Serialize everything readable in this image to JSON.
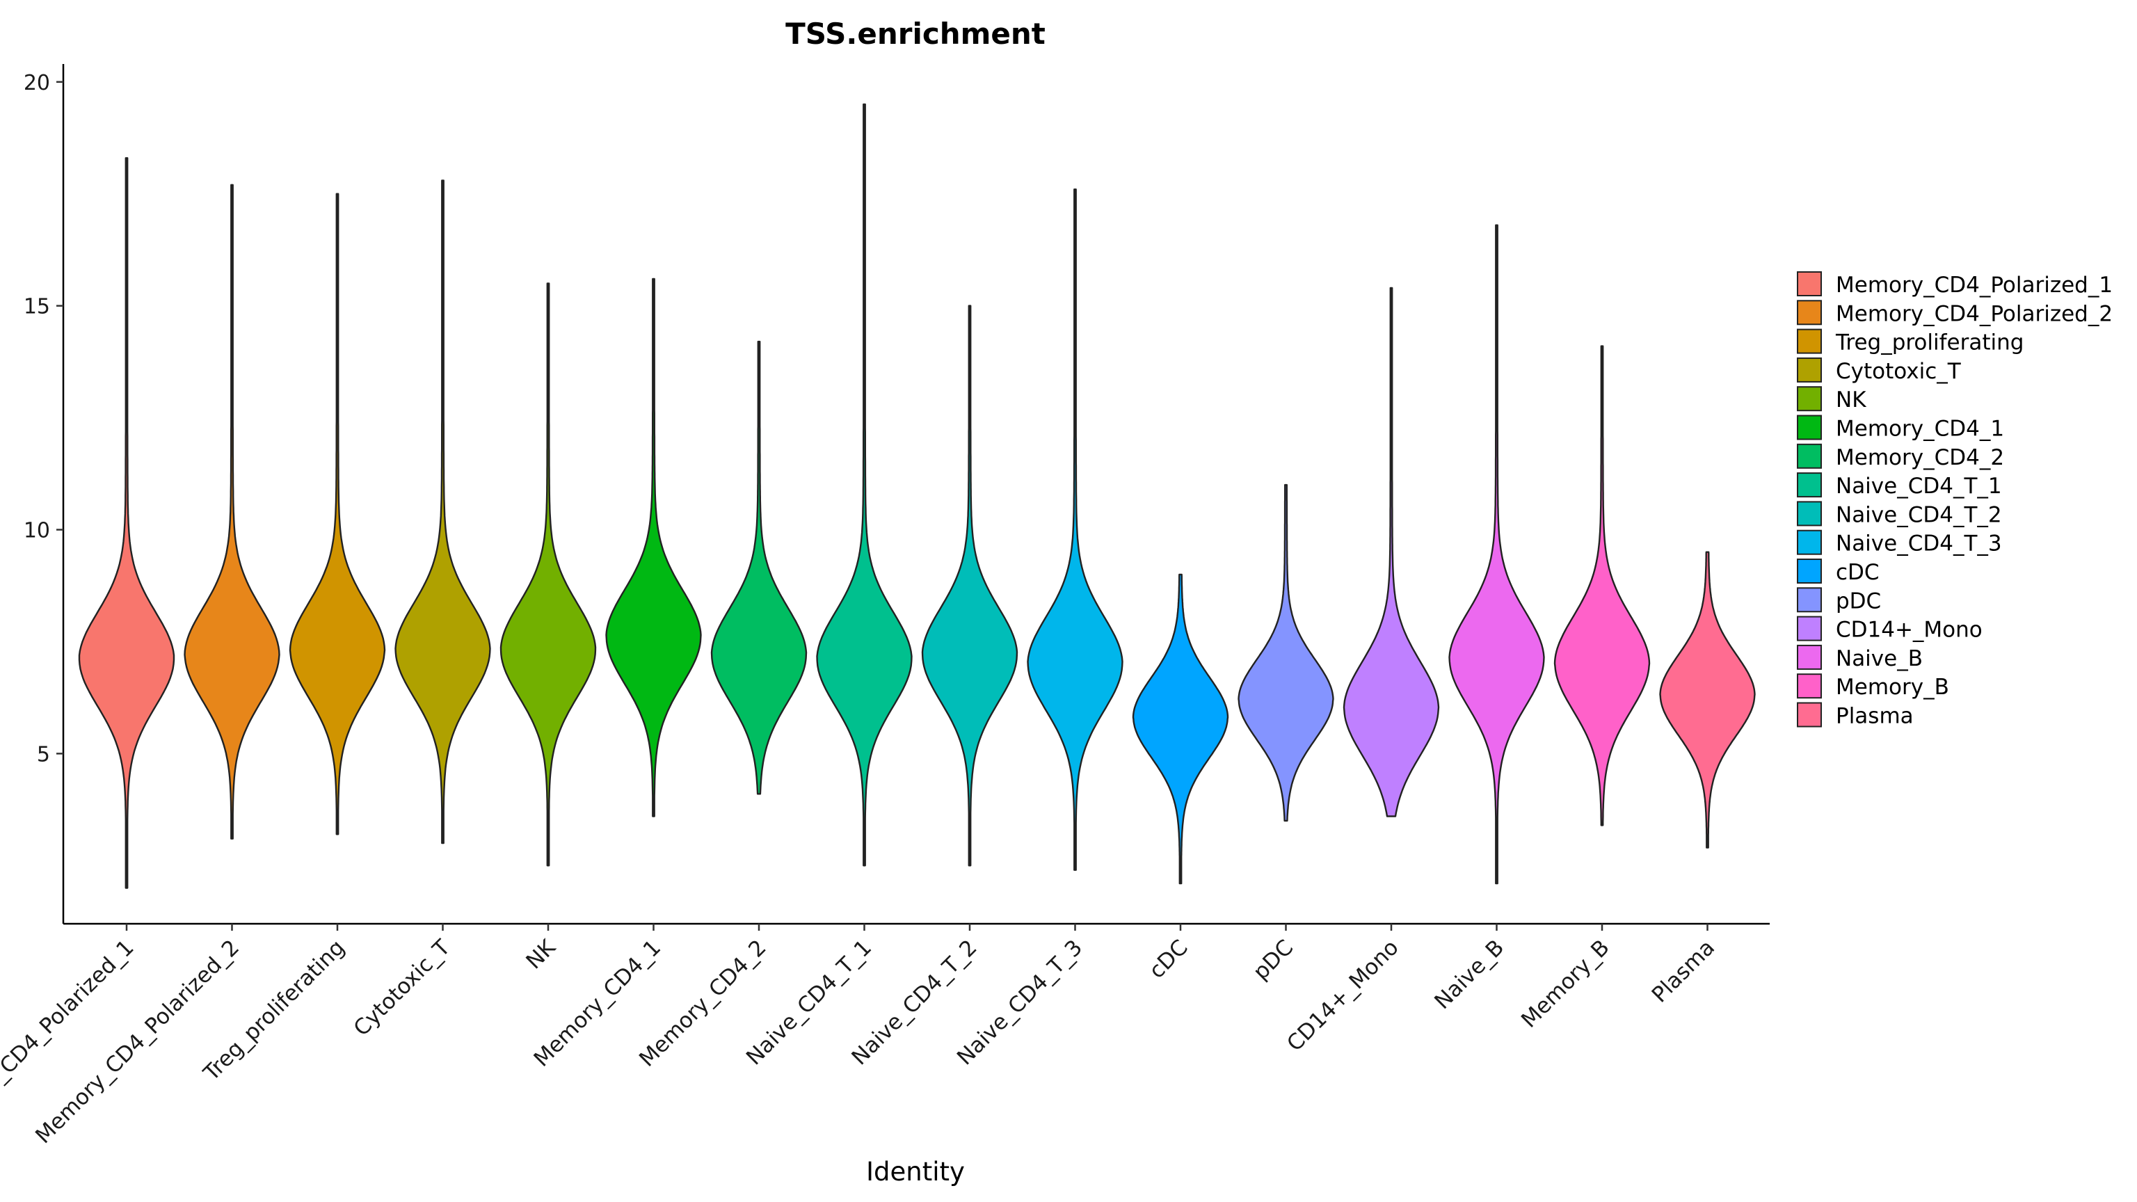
{
  "chart_data": {
    "type": "violin",
    "title": "TSS.enrichment",
    "xlabel": "Identity",
    "ylabel": "",
    "ylim": [
      1.2,
      20.4
    ],
    "yticks": [
      5,
      10,
      15,
      20
    ],
    "grid": false,
    "legend_position": "right",
    "categories": [
      "Memory_CD4_Polarized_1",
      "Memory_CD4_Polarized_2",
      "Treg_proliferating",
      "Cytotoxic_T",
      "NK",
      "Memory_CD4_1",
      "Memory_CD4_2",
      "Naive_CD4_T_1",
      "Naive_CD4_T_2",
      "Naive_CD4_T_3",
      "cDC",
      "pDC",
      "CD14+_Mono",
      "Naive_B",
      "Memory_B",
      "Plasma"
    ],
    "colors": [
      "#F8766D",
      "#E7861A",
      "#D09400",
      "#AFA100",
      "#72B000",
      "#00B813",
      "#00BD61",
      "#00C08E",
      "#00BDB8",
      "#00B6EB",
      "#00A5FF",
      "#8494FF",
      "#BF80FF",
      "#EC69EF",
      "#FF61C9",
      "#FF6C91"
    ],
    "series": [
      {
        "name": "Memory_CD4_Polarized_1",
        "min": 2.0,
        "max": 18.3,
        "median": 7.1
      },
      {
        "name": "Memory_CD4_Polarized_2",
        "min": 3.1,
        "max": 17.7,
        "median": 7.2
      },
      {
        "name": "Treg_proliferating",
        "min": 3.2,
        "max": 17.5,
        "median": 7.3
      },
      {
        "name": "Cytotoxic_T",
        "min": 3.0,
        "max": 17.8,
        "median": 7.3
      },
      {
        "name": "NK",
        "min": 2.5,
        "max": 15.5,
        "median": 7.3
      },
      {
        "name": "Memory_CD4_1",
        "min": 3.6,
        "max": 15.6,
        "median": 7.6
      },
      {
        "name": "Memory_CD4_2",
        "min": 4.1,
        "max": 14.2,
        "median": 7.2
      },
      {
        "name": "Naive_CD4_T_1",
        "min": 2.5,
        "max": 19.5,
        "median": 7.1
      },
      {
        "name": "Naive_CD4_T_2",
        "min": 2.5,
        "max": 15.0,
        "median": 7.2
      },
      {
        "name": "Naive_CD4_T_3",
        "min": 2.4,
        "max": 17.6,
        "median": 7.0
      },
      {
        "name": "cDC",
        "min": 2.1,
        "max": 9.0,
        "median": 5.8
      },
      {
        "name": "pDC",
        "min": 3.5,
        "max": 11.0,
        "median": 6.2
      },
      {
        "name": "CD14+_Mono",
        "min": 3.6,
        "max": 15.4,
        "median": 6.0
      },
      {
        "name": "Naive_B",
        "min": 2.1,
        "max": 16.8,
        "median": 7.1
      },
      {
        "name": "Memory_B",
        "min": 3.4,
        "max": 14.1,
        "median": 7.0
      },
      {
        "name": "Plasma",
        "min": 2.9,
        "max": 9.5,
        "median": 6.3
      }
    ]
  }
}
